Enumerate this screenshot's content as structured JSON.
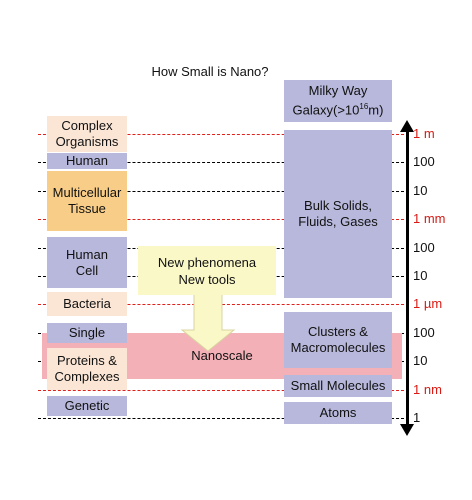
{
  "title": "How Small is Nano?",
  "left_labels": {
    "complex_organisms": "Complex Organisms",
    "human": "Human",
    "multicellular_tissue": "Multicellular Tissue",
    "human_cell": "Human Cell",
    "bacteria": "Bacteria",
    "single": "Single",
    "proteins_complexes": "Proteins & Complexes",
    "genetic": "Genetic"
  },
  "right_labels": {
    "milky_way_line1": "Milky Way",
    "milky_way_line2_prefix": "Galaxy(>10",
    "milky_way_exponent": "16",
    "milky_way_suffix": "m)",
    "bulk": "Bulk Solids, Fluids, Gases",
    "clusters": "Clusters & Macromolecules",
    "small_molecules": "Small Molecules",
    "atoms": "Atoms"
  },
  "center_labels": {
    "new_phenomena_line1": "New phenomena",
    "new_phenomena_line2": "New tools",
    "nanoscale": "Nanoscale"
  },
  "scale_ticks": [
    "1 m",
    "100",
    "10",
    "1 mm",
    "100",
    "10",
    "1 µm",
    "100",
    "10",
    "1 nm",
    "1"
  ],
  "colors": {
    "lavender": "#b8b8dc",
    "peach": "#fbe6d6",
    "orange": "#f8cd87",
    "pink": "#f3b1b7",
    "yellow": "#fbf8c8",
    "red": "#e0201a"
  }
}
